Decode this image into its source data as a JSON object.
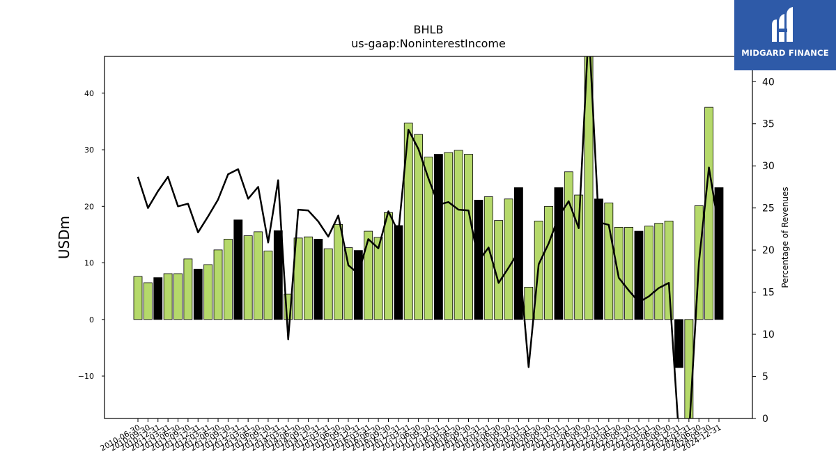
{
  "brand": {
    "name": "MIDGARD FINANCE",
    "bg_color": "#2e5aa8"
  },
  "chart_data": {
    "type": "bar",
    "title": "BHLB",
    "subtitle": "us-gaap:NoninterestIncome",
    "ylabel": "USDm",
    "y2label": "Percentage of Revenues",
    "ylim": [
      -17.5,
      46.5
    ],
    "y2lim": [
      0,
      43
    ],
    "yticks": [
      -10,
      0,
      10,
      20,
      30,
      40
    ],
    "y2ticks": [
      0,
      5,
      10,
      15,
      20,
      25,
      30,
      35,
      40
    ],
    "bar_colors": {
      "quarter": "#b5d96a",
      "year_end": "#000000"
    },
    "line_color": "#000000",
    "categories": [
      "2010-06-30",
      "2010-09-30",
      "2010-12-31",
      "2011-03-31",
      "2011-06-30",
      "2011-09-30",
      "2011-12-31",
      "2012-03-31",
      "2012-06-30",
      "2012-09-30",
      "2012-12-31",
      "2013-03-31",
      "2013-06-30",
      "2013-09-30",
      "2013-12-31",
      "2014-03-31",
      "2014-06-30",
      "2014-09-30",
      "2014-12-31",
      "2015-03-31",
      "2015-06-30",
      "2015-09-30",
      "2015-12-31",
      "2016-03-31",
      "2016-06-30",
      "2016-09-30",
      "2016-12-31",
      "2017-03-31",
      "2017-06-30",
      "2017-09-30",
      "2017-12-31",
      "2018-03-31",
      "2018-06-30",
      "2018-09-30",
      "2018-12-31",
      "2019-03-31",
      "2019-06-30",
      "2019-09-30",
      "2019-12-31",
      "2020-03-31",
      "2020-06-30",
      "2020-09-30",
      "2020-12-31",
      "2021-03-31",
      "2021-06-30",
      "2021-09-30",
      "2021-12-31",
      "2022-03-31",
      "2022-06-30",
      "2022-09-30",
      "2022-12-31",
      "2023-03-31",
      "2023-06-30",
      "2023-09-30",
      "2023-12-31",
      "2024-03-31",
      "2024-06-30",
      "2024-09-30",
      "2024-12-31"
    ],
    "x_tick_labels": [
      "2010-06-30",
      "2010-09-30",
      "2010-12-31",
      "2011-03-31",
      "2011-06-30",
      "2011-09-30",
      "2011-12-31",
      "2012-03-31",
      "2012-06-30",
      "2012-09-30",
      "2012-12-31",
      "2013-03-31",
      "2013-06-30",
      "2013-09-30",
      "2013-12-31",
      "2014-03-31",
      "2014-06-30",
      "2014-09-30",
      "2014-12-31",
      "2015-03-31",
      "2015-06-30",
      "2015-09-30",
      "2015-12-31",
      "2016-03-31",
      "2016-06-30",
      "2016-09-30",
      "2016-12-31",
      "2017-03-31",
      "2017-06-30",
      "2017-09-30",
      "2017-12-31",
      "2018-03-31",
      "2018-06-30",
      "2018-09-30",
      "2018-12-31",
      "2019-03-31",
      "2019-06-30",
      "2019-09-30",
      "2019-12-31",
      "2020-03-31",
      "2020-06-30",
      "2020-09-30",
      "2020-12-31",
      "2021-03-31",
      "2021-06-30",
      "2021-09-30",
      "2021-12-31",
      "2022-03-31",
      "2022-06-30",
      "2022-09-30",
      "2022-12-31",
      "2023-03-31",
      "2023-06-30",
      "2023-09-30",
      "2023-12-31",
      "2024-03-31",
      "2024-06-30",
      "2024-09-30",
      "2024-12-31"
    ],
    "values": [
      7.6,
      6.5,
      7.4,
      8.1,
      8.1,
      10.7,
      8.9,
      9.7,
      12.3,
      14.2,
      17.6,
      14.8,
      15.5,
      12.1,
      15.7,
      4.5,
      14.4,
      14.6,
      14.2,
      12.5,
      16.8,
      12.7,
      12.2,
      15.6,
      14.5,
      18.9,
      16.6,
      34.7,
      32.7,
      28.7,
      29.2,
      29.5,
      29.9,
      29.2,
      21.1,
      21.7,
      17.5,
      21.3,
      23.3,
      5.7,
      17.4,
      20.0,
      23.3,
      26.1,
      22.0,
      47.0,
      21.3,
      20.6,
      16.3,
      16.3,
      15.6,
      16.5,
      17.0,
      17.4,
      -8.5,
      -20.0,
      20.1,
      37.5,
      23.3
    ],
    "year_end": [
      false,
      false,
      true,
      false,
      false,
      false,
      true,
      false,
      false,
      false,
      true,
      false,
      false,
      false,
      true,
      false,
      false,
      false,
      true,
      false,
      false,
      false,
      true,
      false,
      false,
      false,
      true,
      false,
      false,
      false,
      true,
      false,
      false,
      false,
      true,
      false,
      false,
      false,
      true,
      false,
      false,
      false,
      true,
      false,
      false,
      false,
      true,
      false,
      false,
      false,
      true,
      false,
      false,
      false,
      true,
      false,
      false,
      false,
      true
    ],
    "pct_revenue": [
      28.7,
      25.0,
      27.0,
      28.7,
      25.2,
      25.5,
      22.1,
      24.0,
      26.0,
      29.0,
      29.6,
      26.1,
      27.5,
      20.9,
      28.3,
      9.4,
      24.8,
      24.7,
      23.4,
      21.6,
      24.1,
      18.2,
      17.2,
      21.3,
      20.2,
      24.6,
      22.1,
      34.3,
      32.0,
      28.5,
      25.4,
      25.7,
      24.8,
      24.7,
      18.7,
      20.3,
      16.1,
      17.9,
      19.8,
      6.1,
      18.3,
      20.8,
      24.0,
      25.8,
      22.6,
      46.5,
      23.3,
      23.0,
      16.7,
      15.2,
      13.8,
      14.5,
      15.5,
      16.1,
      -2.0,
      -2.0,
      18.5,
      29.8,
      22.5
    ]
  }
}
